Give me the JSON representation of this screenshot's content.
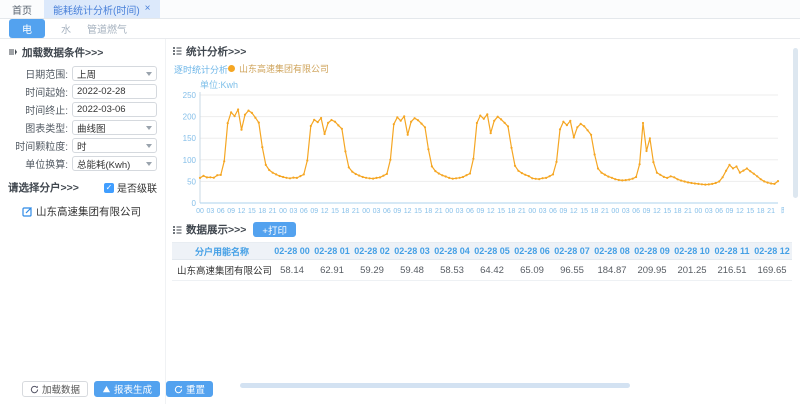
{
  "colors": {
    "accent": "#53a2ef",
    "series": "#f5a623",
    "axis_label": "#85bfe9",
    "table_header_text": "#45a0e6",
    "active_tab_bg": "#dce9fb"
  },
  "browser_tabs": {
    "home": "首页",
    "active": "能耗统计分析(时间)",
    "close": "×"
  },
  "energy_tabs": {
    "electric": "电",
    "water": "水",
    "gas": "管道燃气"
  },
  "left_panel": {
    "header": "加载数据条件>>>",
    "fields": [
      {
        "label": "日期范围:",
        "value": "上周"
      },
      {
        "label": "时间起始:",
        "value": "2022-02-28"
      },
      {
        "label": "时间终止:",
        "value": "2022-03-06"
      },
      {
        "label": "图表类型:",
        "value": "曲线图"
      },
      {
        "label": "时间颗粒度:",
        "value": "时"
      },
      {
        "label": "单位换算:",
        "value": "总能耗(Kwh)"
      }
    ],
    "select_household": "请选择分户>>>",
    "cascade_label": "是否级联",
    "cascade_checked": "✓",
    "tree_item": "山东高速集团有限公司",
    "buttons": {
      "load": "加载数据",
      "report": "报表生成",
      "reset": "重置"
    }
  },
  "analysis": {
    "header": "统计分析>>>",
    "chart_link": "逐时统计分析",
    "legend": "山东高速集团有限公司",
    "unit": "单位:Kwh"
  },
  "chart_data": {
    "type": "line",
    "title": "逐时统计分析",
    "series_name": "山东高速集团有限公司",
    "unit": "Kwh",
    "color": "#f5a623",
    "ylim": [
      0,
      250
    ],
    "yticks": [
      0,
      50,
      100,
      150,
      200,
      250
    ],
    "x_axis_name": "时",
    "x_tick_pattern": [
      "00",
      "03",
      "06",
      "09",
      "12",
      "15",
      "18",
      "21"
    ],
    "days": 7,
    "hours_per_day": 24,
    "values": [
      58.14,
      62.91,
      59.29,
      59.48,
      58.53,
      64.42,
      65.09,
      96.55,
      184.87,
      209.95,
      201.25,
      216.51,
      169.65,
      204.3,
      213.8,
      208.6,
      197.4,
      186.2,
      129.5,
      88.2,
      76.4,
      70.1,
      66.3,
      62.5,
      60.2,
      58.4,
      57.1,
      58.9,
      58.2,
      62.3,
      66.1,
      98.4,
      178.3,
      192.6,
      187.2,
      196.8,
      159.7,
      185.4,
      192.1,
      188.3,
      179.6,
      171.8,
      119.4,
      82.3,
      72.5,
      67.2,
      63.4,
      60.1,
      58.3,
      57.2,
      56.4,
      58.1,
      59.3,
      63.2,
      67.4,
      100.2,
      182.5,
      198.3,
      190.6,
      200.4,
      157.8,
      188.2,
      196.4,
      191.7,
      183.9,
      175.2,
      124.6,
      84.8,
      73.9,
      68.3,
      64.2,
      61.3,
      58.1,
      56.3,
      57.2,
      58.4,
      60.1,
      64.3,
      68.2,
      102.3,
      185.2,
      202.4,
      194.8,
      205.3,
      161.9,
      190.3,
      199.8,
      193.6,
      185.7,
      177.4,
      127.8,
      86.1,
      74.6,
      69.1,
      65.3,
      62.2,
      57.2,
      56.1,
      55.3,
      57.4,
      58.2,
      62.1,
      66.3,
      95.2,
      170.4,
      188.2,
      180.3,
      190.1,
      151.6,
      175.3,
      183.2,
      177.8,
      168.4,
      157.9,
      112.3,
      79.8,
      70.2,
      65.4,
      61.2,
      58.3,
      55.1,
      53.2,
      52.4,
      53.1,
      54.2,
      56.3,
      60.1,
      89.7,
      185.3,
      120.4,
      149.8,
      94.6,
      70.2,
      65.3,
      60.4,
      58.2,
      61.8,
      59.6,
      54.8,
      51.9,
      49.8,
      47.6,
      46.2,
      45.1,
      44.3,
      43.2,
      42.5,
      43.1,
      44.2,
      46.3,
      49.8,
      59.6,
      74.8,
      88.2,
      80.1,
      84.6,
      70.3,
      74.9,
      79.8,
      73.6,
      67.8,
      61.9,
      55.2,
      50.1,
      47.3,
      45.2,
      44.1,
      50.6
    ]
  },
  "table": {
    "header": "数据展示>>>",
    "print_button": "+打印",
    "columns": [
      "分户用能名称",
      "02-28 00",
      "02-28 01",
      "02-28 02",
      "02-28 03",
      "02-28 04",
      "02-28 05",
      "02-28 06",
      "02-28 07",
      "02-28 08",
      "02-28 09",
      "02-28 10",
      "02-28 11",
      "02-28 12"
    ],
    "rows": [
      [
        "山东高速集团有限公司",
        "58.14",
        "62.91",
        "59.29",
        "59.48",
        "58.53",
        "64.42",
        "65.09",
        "96.55",
        "184.87",
        "209.95",
        "201.25",
        "216.51",
        "169.65"
      ]
    ]
  }
}
